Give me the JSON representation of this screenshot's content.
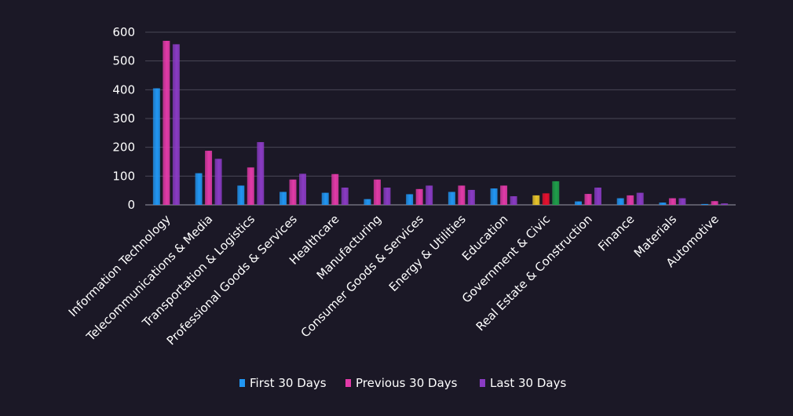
{
  "chart_data": {
    "type": "bar",
    "title": "",
    "xlabel": "",
    "ylabel": "",
    "ylim": [
      0,
      600
    ],
    "yticks": [
      0,
      100,
      200,
      300,
      400,
      500,
      600
    ],
    "grid": true,
    "legend_position": "bottom",
    "categories": [
      "Information Technology",
      "Telecommunications & Media",
      "Transportation & Logistics",
      "Professional Goods & Services",
      "Healthcare",
      "Manufacturing",
      "Consumer Goods & Services",
      "Energy & Utilities",
      "Education",
      "Government & Civic",
      "Real Estate & Construction",
      "Finance",
      "Materials",
      "Automotive"
    ],
    "series": [
      {
        "name": "First 30 Days",
        "color": "#2196f3",
        "values": [
          405,
          110,
          67,
          45,
          42,
          20,
          37,
          45,
          57,
          33,
          12,
          23,
          8,
          3
        ]
      },
      {
        "name": "Previous 30 Days",
        "color": "#e23aa8",
        "values": [
          570,
          188,
          130,
          88,
          107,
          88,
          55,
          67,
          67,
          40,
          38,
          33,
          23,
          13
        ]
      },
      {
        "name": "Last 30 Days",
        "color": "#8a3bc4",
        "values": [
          558,
          160,
          218,
          108,
          60,
          60,
          67,
          52,
          30,
          82,
          60,
          42,
          23,
          5
        ]
      }
    ],
    "highlight_overrides": [
      {
        "category_index": 9,
        "series_index": 0,
        "color": "#e8c42a"
      },
      {
        "category_index": 9,
        "series_index": 1,
        "color": "#e8102e"
      },
      {
        "category_index": 9,
        "series_index": 2,
        "color": "#1e9e4a"
      }
    ]
  }
}
